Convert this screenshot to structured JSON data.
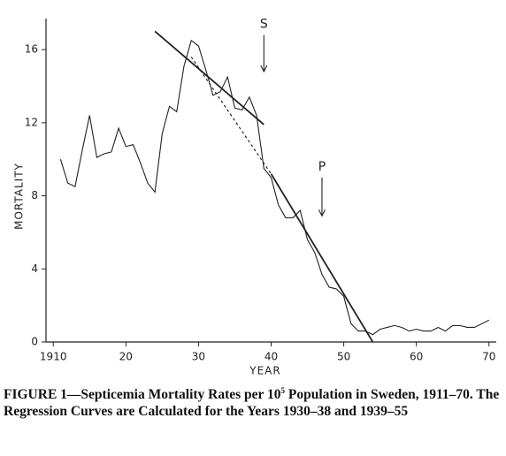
{
  "chart_data": {
    "type": "line",
    "y_label": "MORTALITY",
    "x_label": "YEAR",
    "caption": {
      "before": "FIGURE 1—Septicemia Mortality Rates per 10",
      "superscript": "5",
      "after": " Population in Sweden, 1911–70. The Regression Curves are Calculated for the Years 1930–38 and 1939–55"
    },
    "color": "#222222",
    "x": [
      1911,
      1912,
      1913,
      1914,
      1915,
      1916,
      1917,
      1918,
      1919,
      1920,
      1921,
      1922,
      1923,
      1924,
      1925,
      1926,
      1927,
      1928,
      1929,
      1930,
      1931,
      1932,
      1933,
      1934,
      1935,
      1936,
      1937,
      1938,
      1939,
      1940,
      1941,
      1942,
      1943,
      1944,
      1945,
      1946,
      1947,
      1948,
      1949,
      1950,
      1951,
      1952,
      1953,
      1954,
      1955,
      1956,
      1957,
      1958,
      1959,
      1960,
      1961,
      1962,
      1963,
      1964,
      1965,
      1966,
      1967,
      1968,
      1969,
      1970
    ],
    "values": [
      10.0,
      8.7,
      8.5,
      10.5,
      12.4,
      10.1,
      10.3,
      10.4,
      11.7,
      10.7,
      10.8,
      9.8,
      8.7,
      8.2,
      11.4,
      12.9,
      12.6,
      15.1,
      16.5,
      16.2,
      14.9,
      13.5,
      13.7,
      14.5,
      12.8,
      12.7,
      13.4,
      12.4,
      9.5,
      9.0,
      7.5,
      6.8,
      6.8,
      7.2,
      5.6,
      4.9,
      3.7,
      3.0,
      2.9,
      2.5,
      1.0,
      0.6,
      0.6,
      0.4,
      0.7,
      0.8,
      0.9,
      0.8,
      0.6,
      0.7,
      0.6,
      0.6,
      0.8,
      0.6,
      0.9,
      0.9,
      0.8,
      0.8,
      1.0,
      1.2
    ],
    "regression_lines": [
      {
        "x": [
          1924,
          1939
        ],
        "values": [
          17.0,
          11.9
        ],
        "dashed": false
      },
      {
        "x": [
          1929,
          1940
        ],
        "values": [
          15.6,
          9.2
        ],
        "dashed": true
      },
      {
        "x": [
          1940,
          1954
        ],
        "values": [
          9.2,
          0
        ],
        "dashed": false
      }
    ],
    "annotations": [
      {
        "text": "S",
        "x": 1939,
        "arrow": [
          16.8,
          14.8
        ]
      },
      {
        "text": "P",
        "x": 1947,
        "arrow": [
          9.0,
          6.9
        ]
      }
    ],
    "xlim": [
      1909,
      1971
    ],
    "ylim": [
      0,
      17.7
    ],
    "xticks": [
      1910,
      {
        "value": 1920,
        "label": "20"
      },
      {
        "value": 1930,
        "label": "30"
      },
      {
        "value": 1940,
        "label": "40"
      },
      {
        "value": 1950,
        "label": "50"
      },
      {
        "value": 1960,
        "label": "60"
      },
      {
        "value": 1970,
        "label": "70"
      }
    ],
    "yticks": [
      0,
      4,
      8,
      12,
      16
    ],
    "grid": false
  }
}
